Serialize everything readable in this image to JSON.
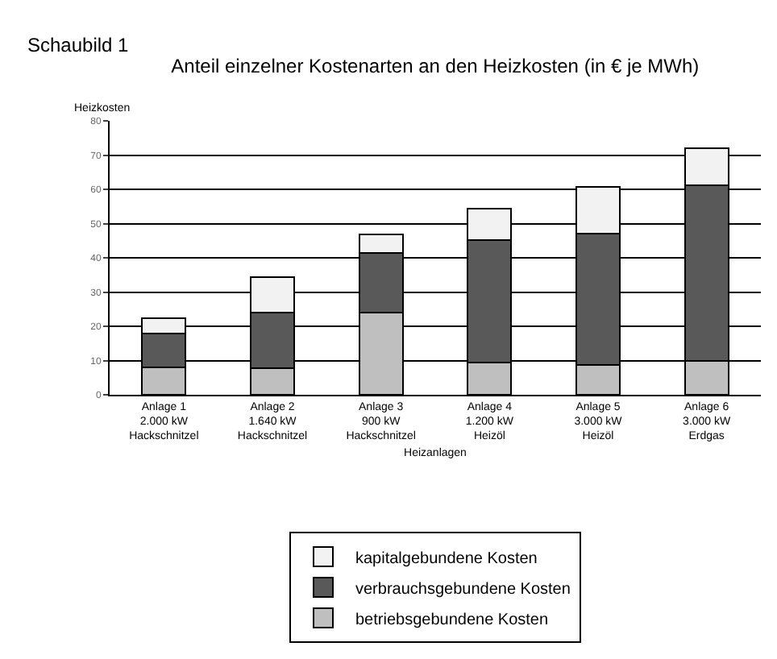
{
  "chart_data": {
    "type": "bar",
    "title": "Anteil einzelner Kostenarten an den Heizkosten (in € je MWh)",
    "xlabel": "Heizanlagen",
    "ylabel": "Heizkosten",
    "annotations": [
      "Schaubild 1"
    ],
    "categories": [
      "Anlage 1\n2.000 kW\nHackschnitzel",
      "Anlage 2\n1.640 kW\nHackschnitzel",
      "Anlage 3\n900 kW\nHackschnitzel",
      "Anlage 4\n1.200 kW\nHeizöl",
      "Anlage 5\n3.000 kW\nHeizöl",
      "Anlage 6\n3.000 kW\nErdgas"
    ],
    "stacked": true,
    "series": [
      {
        "name": "betriebsgebundene Kosten",
        "color": "#bfbfbf",
        "values": [
          8,
          7.8,
          24.1,
          9.3,
          8.8,
          10
        ]
      },
      {
        "name": "verbrauchsgebundene Kosten",
        "color": "#595959",
        "values": [
          10,
          16.3,
          17.4,
          35.9,
          38.2,
          51.1
        ]
      },
      {
        "name": "kapitalgebundene Kosten",
        "color": "#f2f2f2",
        "values": [
          4.3,
          10.3,
          5.3,
          9.2,
          13.7,
          10.8
        ]
      }
    ],
    "ylim": [
      0,
      80
    ],
    "yticks": [
      0,
      10,
      20,
      30,
      40,
      50,
      60,
      70,
      80
    ],
    "grid": "y",
    "legend": "bottom"
  }
}
